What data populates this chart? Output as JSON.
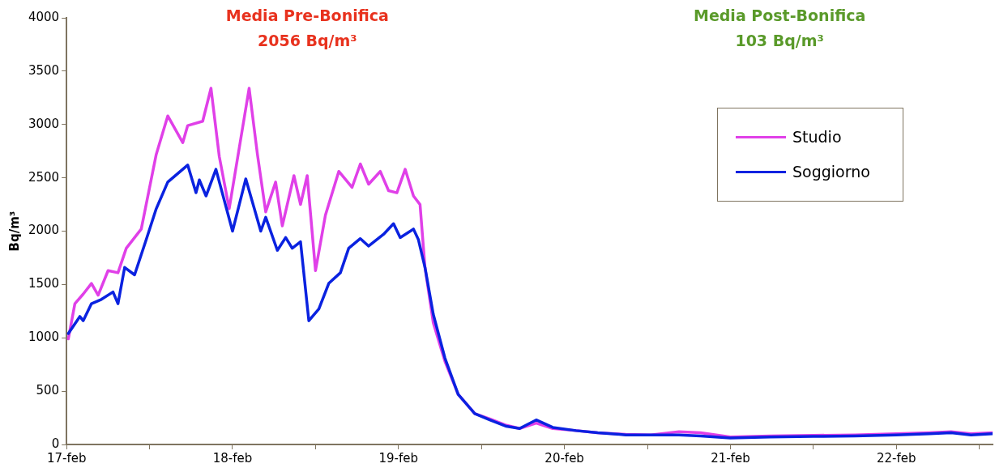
{
  "chart_data": {
    "type": "line",
    "ylabel": "Bq/m³",
    "annotations": [
      "Media Pre-Bonifica",
      "2056 Bq/m³",
      "Media Post-Bonifica",
      "103 Bq/m³"
    ],
    "xlim": [
      "--02-17T00:00",
      "--02-22T13:55"
    ],
    "xticks": [
      {
        "value": "--02-17T00:00",
        "label": "17-feb"
      },
      {
        "value": "--02-17T12:00",
        "label": null
      },
      {
        "value": "--02-18T00:00",
        "label": "18-feb"
      },
      {
        "value": "--02-18T12:00",
        "label": null
      },
      {
        "value": "--02-19T00:00",
        "label": "19-feb"
      },
      {
        "value": "--02-19T12:00",
        "label": null
      },
      {
        "value": "--02-20T00:00",
        "label": "20-feb"
      },
      {
        "value": "--02-20T12:00",
        "label": null
      },
      {
        "value": "--02-21T00:00",
        "label": "21-feb"
      },
      {
        "value": "--02-21T12:00",
        "label": null
      },
      {
        "value": "--02-22T00:00",
        "label": "22-feb"
      },
      {
        "value": "--02-22T12:00",
        "label": null
      }
    ],
    "ylim": [
      0,
      4000
    ],
    "yticks": [
      0,
      500,
      1000,
      1500,
      2000,
      2500,
      3000,
      3500,
      4000
    ],
    "grid": false,
    "legend": "right",
    "marker": "none",
    "line_style": "solid",
    "series": [
      {
        "name": "Studio",
        "color": "#e040e8",
        "x": [
          "--02-17T00:15",
          "--02-17T01:12",
          "--02-17T02:24",
          "--02-17T03:36",
          "--02-17T04:34",
          "--02-17T06:00",
          "--02-17T07:26",
          "--02-17T08:38",
          "--02-17T10:48",
          "--02-17T12:58",
          "--02-17T14:38",
          "--02-17T16:48",
          "--02-17T17:31",
          "--02-17T19:41",
          "--02-17T20:53",
          "--02-17T22:05",
          "--02-17T23:31",
          "--02-18T02:24",
          "--02-18T03:36",
          "--02-18T04:48",
          "--02-18T06:14",
          "--02-18T07:12",
          "--02-18T08:53",
          "--02-18T09:50",
          "--02-18T10:48",
          "--02-18T12:00",
          "--02-18T13:26",
          "--02-18T15:22",
          "--02-18T17:17",
          "--02-18T18:29",
          "--02-18T19:41",
          "--02-18T21:22",
          "--02-18T22:34",
          "--02-18T23:46",
          "--02-19T00:58",
          "--02-19T02:10",
          "--02-19T03:07",
          "--02-19T03:50",
          "--02-19T05:02",
          "--02-19T06:43",
          "--02-19T08:38",
          "--02-19T11:02",
          "--02-19T13:12",
          "--02-19T15:36",
          "--02-19T17:31",
          "--02-19T19:55",
          "--02-19T22:19",
          "--02-20T01:41",
          "--02-20T04:48",
          "--02-20T08:53",
          "--02-20T12:29",
          "--02-20T16:34",
          "--02-20T19:41",
          "--02-21T00:00",
          "--02-21T05:46",
          "--02-21T12:00",
          "--02-21T18:00",
          "--02-22T00:00",
          "--02-22T04:48",
          "--02-22T07:55",
          "--02-22T10:48",
          "--02-22T13:55"
        ],
        "values": [
          990,
          1320,
          1410,
          1510,
          1400,
          1630,
          1610,
          1840,
          2020,
          2720,
          3080,
          2830,
          2990,
          3030,
          3340,
          2700,
          2210,
          3340,
          2720,
          2180,
          2460,
          2050,
          2520,
          2250,
          2520,
          1630,
          2150,
          2560,
          2410,
          2630,
          2440,
          2560,
          2380,
          2360,
          2580,
          2330,
          2250,
          1660,
          1140,
          780,
          470,
          290,
          240,
          180,
          150,
          200,
          150,
          130,
          110,
          95,
          90,
          120,
          110,
          70,
          80,
          85,
          90,
          100,
          110,
          120,
          100,
          110
        ]
      },
      {
        "name": "Soggiorno",
        "color": "#0a22e0",
        "x": [
          "--02-17T00:15",
          "--02-17T01:55",
          "--02-17T02:24",
          "--02-17T03:36",
          "--02-17T05:02",
          "--02-17T06:43",
          "--02-17T07:26",
          "--02-17T08:24",
          "--02-17T09:50",
          "--02-17T11:31",
          "--02-17T12:58",
          "--02-17T14:38",
          "--02-17T17:31",
          "--02-17T18:43",
          "--02-17T19:12",
          "--02-17T20:10",
          "--02-17T21:36",
          "--02-18T00:00",
          "--02-18T01:55",
          "--02-18T04:05",
          "--02-18T04:48",
          "--02-18T06:29",
          "--02-18T07:41",
          "--02-18T08:38",
          "--02-18T09:50",
          "--02-18T11:02",
          "--02-18T12:29",
          "--02-18T13:55",
          "--02-18T15:36",
          "--02-18T16:48",
          "--02-18T18:29",
          "--02-18T19:41",
          "--02-18T21:50",
          "--02-18T23:17",
          "--02-19T00:15",
          "--02-19T02:10",
          "--02-19T02:53",
          "--02-19T03:50",
          "--02-19T05:02",
          "--02-19T06:43",
          "--02-19T08:38",
          "--02-19T11:02",
          "--02-19T13:12",
          "--02-19T15:36",
          "--02-19T17:31",
          "--02-19T19:55",
          "--02-19T22:19",
          "--02-20T01:41",
          "--02-20T04:48",
          "--02-20T08:53",
          "--02-20T12:29",
          "--02-20T16:34",
          "--02-20T19:41",
          "--02-21T00:00",
          "--02-21T05:46",
          "--02-21T12:00",
          "--02-21T18:00",
          "--02-22T00:00",
          "--02-22T04:48",
          "--02-22T07:55",
          "--02-22T10:48",
          "--02-22T13:55"
        ],
        "values": [
          1040,
          1200,
          1160,
          1320,
          1360,
          1430,
          1320,
          1660,
          1590,
          1920,
          2210,
          2460,
          2620,
          2360,
          2480,
          2330,
          2580,
          2000,
          2490,
          2000,
          2130,
          1820,
          1940,
          1840,
          1900,
          1160,
          1270,
          1510,
          1610,
          1840,
          1930,
          1860,
          1970,
          2070,
          1940,
          2020,
          1920,
          1660,
          1220,
          810,
          470,
          290,
          230,
          170,
          150,
          230,
          160,
          130,
          110,
          90,
          90,
          90,
          80,
          60,
          70,
          75,
          80,
          90,
          100,
          110,
          90,
          100
        ]
      }
    ]
  }
}
